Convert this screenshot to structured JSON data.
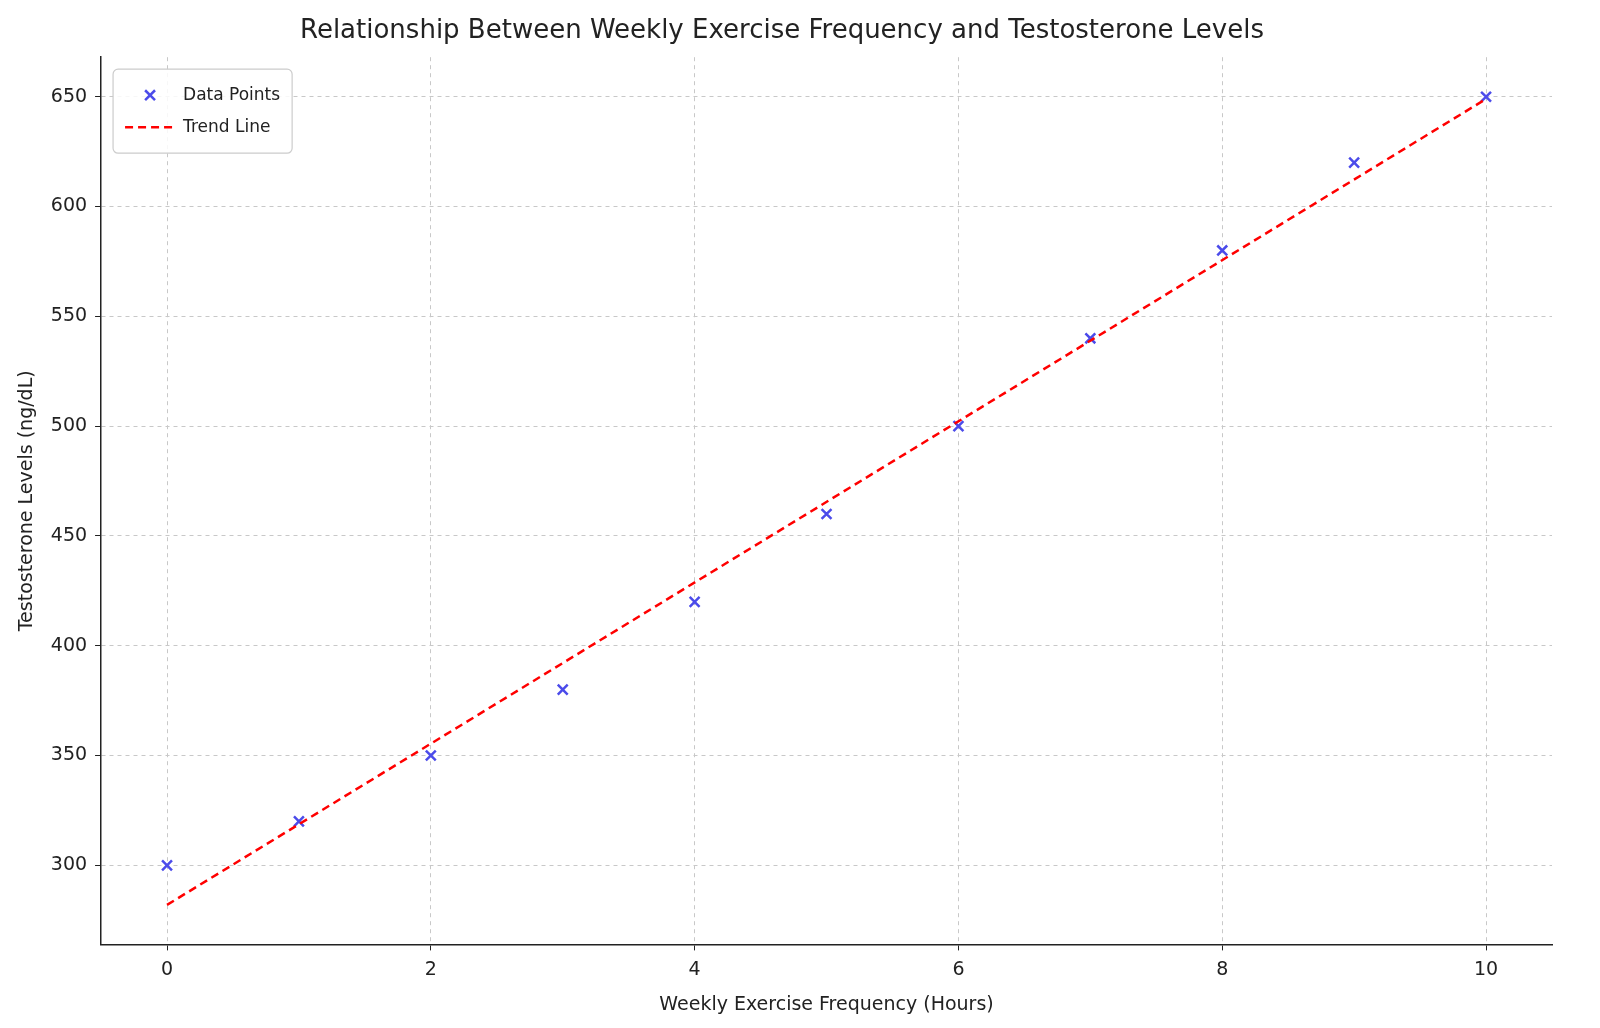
{
  "chart_data": {
    "type": "scatter",
    "title": "Relationship Between Weekly Exercise Frequency and Testosterone Levels",
    "x_label": "Weekly Exercise Frequency (Hours)",
    "y_label": "Testosterone Levels (ng/dL)",
    "series": [
      {
        "name": "Data Points",
        "type": "scatter",
        "color": "#4b4bea",
        "marker": "x",
        "x": [
          0,
          1,
          2,
          3,
          4,
          5,
          6,
          7,
          8,
          9,
          10
        ],
        "values": [
          300,
          320,
          350,
          380,
          420,
          460,
          500,
          540,
          580,
          620,
          650
        ]
      },
      {
        "name": "Trend Line",
        "type": "line",
        "color": "#ff0000",
        "line_style": "dashed",
        "x": [
          0,
          10
        ],
        "values": [
          282,
          649
        ]
      }
    ],
    "xlim": [
      -0.5,
      10.5
    ],
    "xticks": [
      0,
      2,
      4,
      6,
      8,
      10
    ],
    "ylim": [
      264,
      668
    ],
    "yticks": [
      300,
      350,
      400,
      450,
      500,
      550,
      600,
      650
    ],
    "grid": true,
    "legend": "upper left"
  }
}
